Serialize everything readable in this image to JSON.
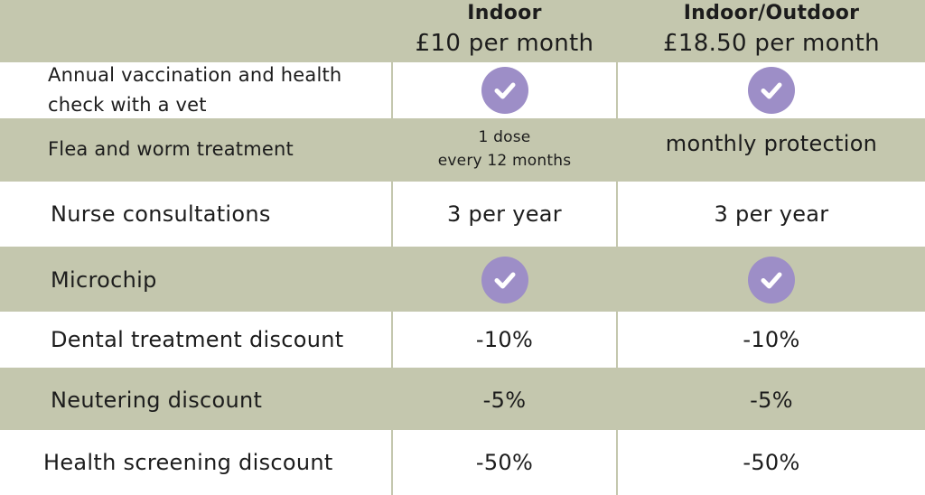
{
  "header": {
    "plans": [
      {
        "name": "Indoor",
        "price": "£10 per month"
      },
      {
        "name": "Indoor/Outdoor",
        "price": "£18.50 per month"
      }
    ]
  },
  "rows": [
    {
      "feature": "Annual vaccination and health\ncheck with a vet",
      "indoor": "check",
      "outdoor": "check"
    },
    {
      "feature": "Flea and worm treatment",
      "indoor": "1 dose\nevery 12 months",
      "outdoor": "monthly protection"
    },
    {
      "feature": "Nurse consultations",
      "indoor": "3 per year",
      "outdoor": "3 per year"
    },
    {
      "feature": "Microchip",
      "indoor": "check",
      "outdoor": "check"
    },
    {
      "feature": "Dental treatment discount",
      "indoor": "-10%",
      "outdoor": "-10%"
    },
    {
      "feature": "Neutering discount",
      "indoor": "-5%",
      "outdoor": "-5%"
    },
    {
      "feature": "Health screening discount",
      "indoor": "-50%",
      "outdoor": "-50%"
    }
  ],
  "colors": {
    "background": "#c4c7ae",
    "row_alt": "#ffffff",
    "check": "#9d8ec7"
  },
  "icons": {
    "included": "check-circle-icon"
  }
}
